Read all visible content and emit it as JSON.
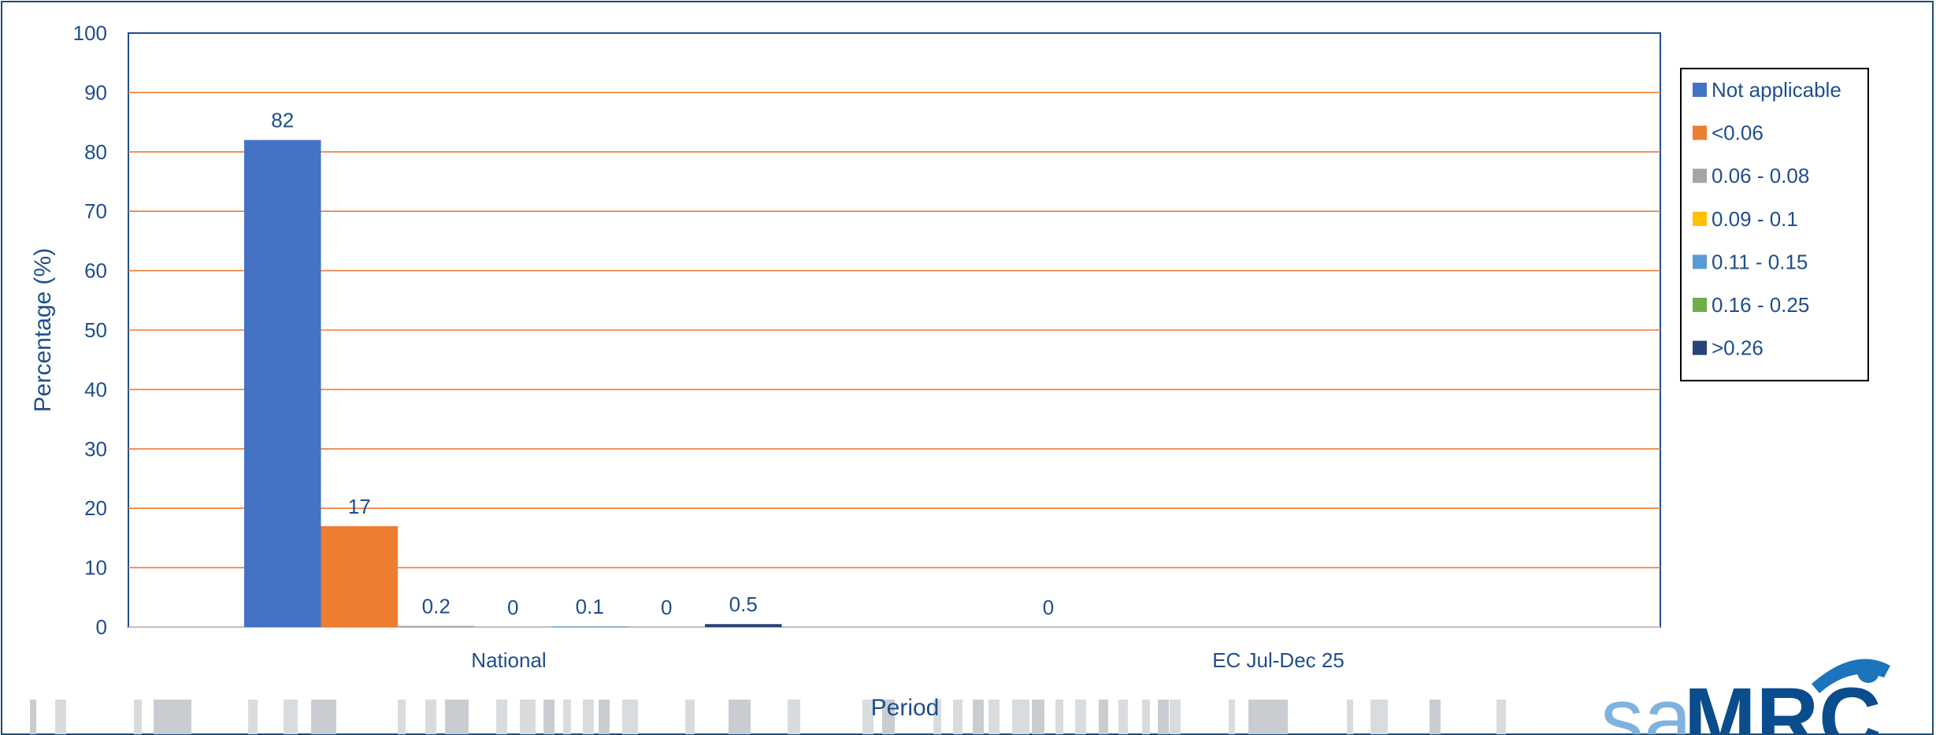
{
  "chart_data": {
    "type": "bar",
    "categories": [
      "National",
      "EC Jul-Dec 25"
    ],
    "series": [
      {
        "name": "Not applicable",
        "color": "#4472c4",
        "values": [
          82,
          null
        ]
      },
      {
        "name": "<0.06",
        "color": "#ed7d31",
        "values": [
          17,
          null
        ]
      },
      {
        "name": "0.06 - 0.08",
        "color": "#a5a5a5",
        "values": [
          0.2,
          null
        ]
      },
      {
        "name": "0.09 - 0.1",
        "color": "#ffc000",
        "values": [
          0,
          null
        ]
      },
      {
        "name": "0.11 - 0.15",
        "color": "#5b9bd5",
        "values": [
          0.1,
          null
        ]
      },
      {
        "name": "0.16 - 0.25",
        "color": "#70ad47",
        "values": [
          0,
          null
        ]
      },
      {
        "name": ">0.26",
        "color": "#264478",
        "values": [
          0.5,
          0
        ]
      }
    ],
    "xlabel": "Period",
    "ylabel": "Percentage (%)",
    "ylim": [
      0,
      100
    ],
    "yticks": [
      0,
      10,
      20,
      30,
      40,
      50,
      60,
      70,
      80,
      90,
      100
    ],
    "grid": true,
    "legend_position": "right",
    "gridline_color": "#ed7d31",
    "axis_color": "#1f4e8c"
  },
  "logo": {
    "text": "SAMRC",
    "primary_color": "#1c75bc",
    "secondary_color": "#0a4d8c"
  }
}
